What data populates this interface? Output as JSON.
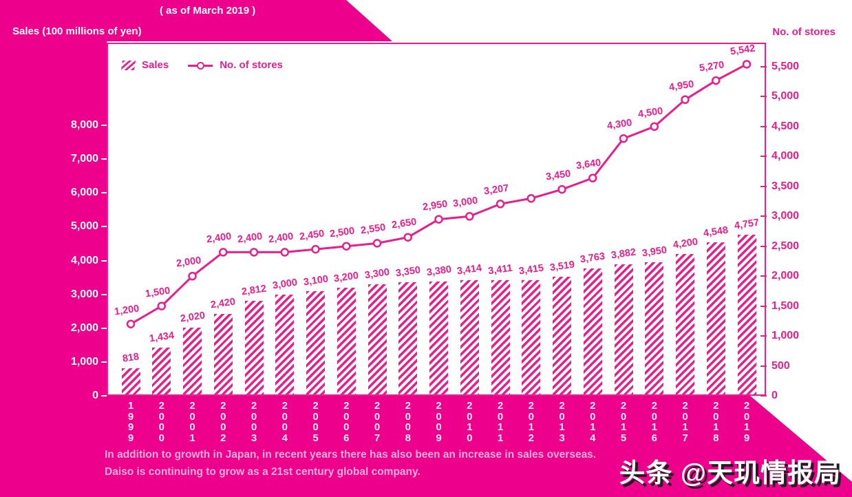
{
  "page": {
    "top_note": "( as of March 2019 )",
    "left_axis_title": "Sales (100 millions of yen)",
    "right_axis_title": "No. of stores",
    "footer_line1": "In addition to growth in Japan, in recent years there has also been an increase in sales overseas.",
    "footer_line2": "Daiso is continuing to grow as a 21st century global company.",
    "watermark": "头条 @天玑情报局"
  },
  "legend": {
    "sales_label": "Sales",
    "stores_label": "No. of stores"
  },
  "colors": {
    "magenta_background": "#ec008c",
    "accent": "#e81e8d",
    "footer_text": "#f5b0d8",
    "year_text": "#ffeaf6",
    "white_text": "#ffffff"
  },
  "chart_data": {
    "type": "bar",
    "subtype": "bar+line combo, dual axis",
    "title": "( as of March 2019 )",
    "grid": "off",
    "legend_position": "top-left inside plot",
    "categories": [
      "1999",
      "2000",
      "2001",
      "2002",
      "2003",
      "2004",
      "2005",
      "2006",
      "2007",
      "2008",
      "2009",
      "2010",
      "2011",
      "2012",
      "2013",
      "2014",
      "2015",
      "2016",
      "2017",
      "2018",
      "2019"
    ],
    "series": [
      {
        "name": "Sales",
        "chart": "bar",
        "axis": "left",
        "values": [
          818,
          1434,
          2020,
          2420,
          2812,
          3000,
          3100,
          3200,
          3300,
          3350,
          3380,
          3414,
          3411,
          3415,
          3519,
          3763,
          3882,
          3950,
          4200,
          4548,
          4757
        ],
        "labels": [
          "818",
          "1,434",
          "2,020",
          "2,420",
          "2,812",
          "3,000",
          "3,100",
          "3,200",
          "3,300",
          "3,350",
          "3,380",
          "3,414",
          "3,411",
          "3,415",
          "3,519",
          "3,763",
          "3,882",
          "3,950",
          "4,200",
          "4,548",
          "4,757"
        ]
      },
      {
        "name": "No. of stores",
        "chart": "line",
        "axis": "right",
        "values": [
          1200,
          1500,
          2000,
          2400,
          2400,
          2400,
          2450,
          2500,
          2550,
          2650,
          2950,
          3000,
          3207,
          3300,
          3450,
          3640,
          4300,
          4500,
          4950,
          5270,
          5542
        ],
        "labels": [
          "1,200",
          "1,500",
          "2,000",
          "2,400",
          "2,400",
          "2,400",
          "2,450",
          "2,500",
          "2,550",
          "2,650",
          "2,950",
          "3,000",
          "3,207",
          "",
          "3,450",
          "3,640",
          "4,300",
          "4,500",
          "4,950",
          "5,270",
          "5,542"
        ]
      }
    ],
    "left_axis": {
      "label": "Sales (100 millions of yen)",
      "tick_values": [
        0,
        1000,
        2000,
        3000,
        4000,
        5000,
        6000,
        7000,
        8000
      ],
      "tick_labels": [
        "0",
        "1,000",
        "2,000",
        "3,000",
        "4,000",
        "5,000",
        "6,000",
        "7,000",
        "8,000"
      ],
      "range_shown": [
        0,
        8000
      ]
    },
    "right_axis": {
      "label": "No. of stores",
      "tick_values": [
        0,
        500,
        1000,
        1500,
        2000,
        2500,
        3000,
        3500,
        4000,
        4500,
        5000,
        5500
      ],
      "tick_labels": [
        "0",
        "500",
        "1,000",
        "1,500",
        "2,000",
        "2,500",
        "3,000",
        "3,500",
        "4,000",
        "4,500",
        "5,000",
        "5,500"
      ],
      "range_shown": [
        0,
        5500
      ]
    }
  }
}
